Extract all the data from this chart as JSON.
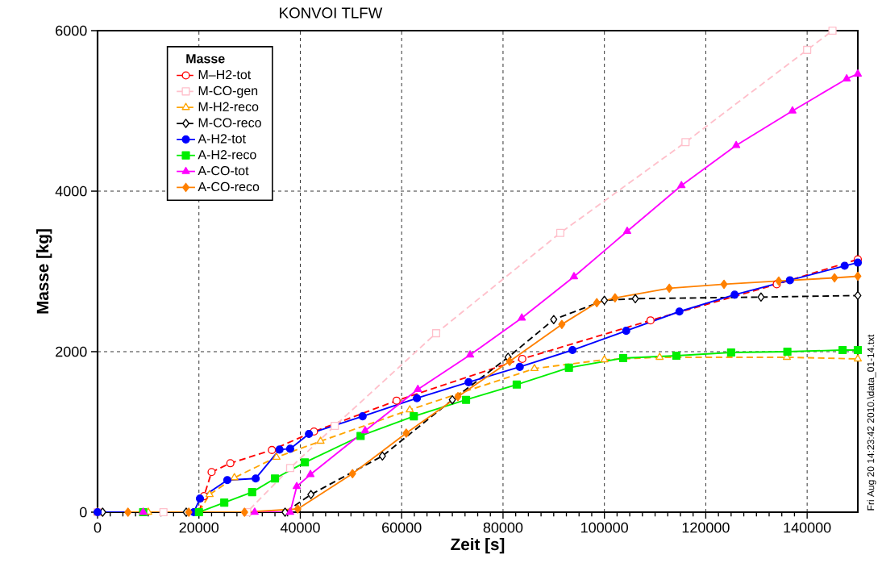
{
  "chart_data": {
    "type": "line",
    "title": "KONVOI TLFW",
    "xlabel": "Zeit [s]",
    "ylabel": "Masse [kg]",
    "legend_title": "Masse",
    "xlim": [
      0,
      150000
    ],
    "ylim": [
      0,
      6000
    ],
    "xticks": [
      0,
      20000,
      40000,
      60000,
      80000,
      100000,
      120000,
      140000
    ],
    "yticks": [
      0,
      2000,
      4000,
      6000
    ],
    "grid": true,
    "legend": "top left",
    "annotations": [
      "Fri Aug 20 14:23:42 2010.\\data_01-14.txt"
    ],
    "series": [
      {
        "name": "M–H2-tot",
        "color": "#ff0000",
        "line_style": "dashed",
        "marker": "circle",
        "x": [
          0,
          9000,
          20000,
          21000,
          22500,
          26200,
          34400,
          42700,
          59000,
          83800,
          109100,
          134000,
          150000
        ],
        "values": [
          0,
          0,
          0,
          200,
          500,
          610,
          775,
          1005,
          1390,
          1910,
          2390,
          2840,
          3150
        ]
      },
      {
        "name": "M-CO-gen",
        "color": "#ffc0cb",
        "line_style": "dashed",
        "marker": "square",
        "x": [
          0,
          13000,
          29500,
          38000,
          46800,
          66800,
          91300,
          116000,
          140000,
          145000
        ],
        "values": [
          0,
          0,
          0,
          550,
          1075,
          2230,
          3480,
          4610,
          5760,
          6000
        ]
      },
      {
        "name": "M-H2-reco",
        "color": "#ffa500",
        "line_style": "dashed",
        "marker": "triangle",
        "x": [
          0,
          10000,
          20000,
          22100,
          27000,
          35300,
          44000,
          61600,
          86200,
          100000,
          110900,
          136000,
          150000
        ],
        "values": [
          0,
          0,
          0,
          220,
          430,
          685,
          885,
          1275,
          1790,
          1900,
          1930,
          1930,
          1910
        ]
      },
      {
        "name": "M-CO-reco",
        "color": "#000000",
        "line_style": "dashed",
        "marker": "diamond",
        "x": [
          1000,
          17500,
          37000,
          42100,
          56200,
          70000,
          81000,
          90000,
          100000,
          106100,
          130900,
          150000
        ],
        "values": [
          0,
          0,
          0,
          220,
          700,
          1400,
          1930,
          2400,
          2640,
          2660,
          2680,
          2700
        ]
      },
      {
        "name": "A-H2-tot",
        "color": "#0000ff",
        "line_style": "solid",
        "marker": "circle",
        "x": [
          0,
          19000,
          20200,
          25600,
          31200,
          35900,
          38000,
          41700,
          52300,
          63000,
          73200,
          83300,
          93700,
          104300,
          114800,
          125700,
          136600,
          147400,
          150000
        ],
        "values": [
          0,
          0,
          170,
          400,
          420,
          780,
          790,
          975,
          1195,
          1420,
          1620,
          1810,
          2020,
          2260,
          2500,
          2710,
          2890,
          3070,
          3110
        ]
      },
      {
        "name": "A-H2-reco",
        "color": "#00ee00",
        "line_style": "solid",
        "marker": "square",
        "x": [
          9000,
          20000,
          25000,
          30500,
          35000,
          40900,
          51900,
          62400,
          72700,
          82700,
          93000,
          103700,
          114200,
          125000,
          136100,
          147000,
          150000
        ],
        "values": [
          0,
          0,
          120,
          250,
          420,
          620,
          950,
          1195,
          1400,
          1590,
          1800,
          1920,
          1950,
          1990,
          2000,
          2020,
          2020
        ]
      },
      {
        "name": "A-CO-tot",
        "color": "#ff00ff",
        "line_style": "solid",
        "marker": "triangle",
        "x": [
          9000,
          31000,
          38000,
          39300,
          42000,
          52800,
          63200,
          73500,
          83700,
          94000,
          104500,
          115200,
          126000,
          137100,
          147800,
          150000
        ],
        "values": [
          0,
          0,
          0,
          320,
          470,
          1015,
          1530,
          1960,
          2420,
          2935,
          3500,
          4070,
          4570,
          5000,
          5400,
          5460
        ]
      },
      {
        "name": "A-CO-reco",
        "color": "#ff8000",
        "line_style": "solid",
        "marker": "diamond",
        "x": [
          6000,
          18000,
          29000,
          39500,
          50300,
          60900,
          71100,
          81300,
          91600,
          98500,
          102100,
          112800,
          123600,
          134400,
          145400,
          150000
        ],
        "values": [
          0,
          0,
          0,
          40,
          480,
          985,
          1440,
          1880,
          2340,
          2610,
          2670,
          2790,
          2840,
          2880,
          2920,
          2940
        ]
      }
    ]
  }
}
